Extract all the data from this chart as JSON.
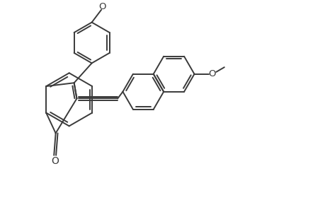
{
  "bg_color": "#ffffff",
  "line_color": "#3a3a3a",
  "line_width": 1.4,
  "figsize": [
    4.6,
    3.0
  ],
  "dpi": 100,
  "xlim": [
    0,
    9.2
  ],
  "ylim": [
    0,
    6.0
  ]
}
